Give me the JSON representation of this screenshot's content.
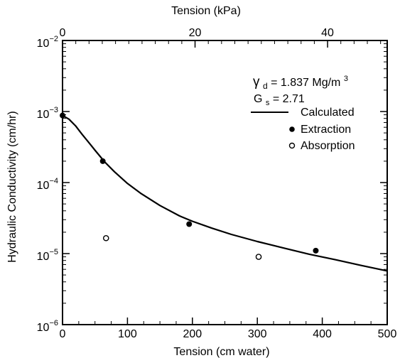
{
  "chart_data": {
    "type": "scatter",
    "xlabel": "Tension (cm water)",
    "x2label": "Tension (kPa)",
    "ylabel": "Hydraulic Conductivity (cm/hr)",
    "xlim": [
      0,
      500
    ],
    "x2lim": [
      0,
      49.0
    ],
    "ylim": [
      1e-06,
      0.01
    ],
    "yscale": "log",
    "x_ticks": [
      0,
      100,
      200,
      300,
      400,
      500
    ],
    "x2_ticks": [
      0,
      20,
      40
    ],
    "y_ticks": [
      {
        "value": 1e-06,
        "base": "10",
        "exp": "−6"
      },
      {
        "value": 1e-05,
        "base": "10",
        "exp": "−5"
      },
      {
        "value": 0.0001,
        "base": "10",
        "exp": "−4"
      },
      {
        "value": 0.001,
        "base": "10",
        "exp": "−3"
      },
      {
        "value": 0.01,
        "base": "10",
        "exp": "−2"
      }
    ],
    "annotations": {
      "gamma": {
        "sym": "γ",
        "sub": "d",
        "text": " = 1.837 Mg/m",
        "sup": "3"
      },
      "gs": {
        "sym": "G",
        "sub": "s",
        "text": " = 2.71"
      }
    },
    "series": [
      {
        "name": "Calculated",
        "style": "line",
        "x": [
          0,
          10,
          20,
          30,
          40,
          50,
          65,
          80,
          100,
          120,
          150,
          180,
          200,
          230,
          260,
          300,
          340,
          380,
          420,
          460,
          500
        ],
        "y": [
          0.00088,
          0.00078,
          0.00063,
          0.00048,
          0.00037,
          0.000285,
          0.000195,
          0.000142,
          9.7e-05,
          7.1e-05,
          4.75e-05,
          3.4e-05,
          2.85e-05,
          2.28e-05,
          1.86e-05,
          1.48e-05,
          1.2e-05,
          9.8e-06,
          8.2e-06,
          6.8e-06,
          5.7e-06
        ]
      },
      {
        "name": "Extraction",
        "style": "filled-circle",
        "x": [
          0,
          62,
          195,
          390
        ],
        "y": [
          0.00088,
          0.0002,
          2.6e-05,
          1.1e-05
        ]
      },
      {
        "name": "Absorption",
        "style": "open-circle",
        "x": [
          67,
          302
        ],
        "y": [
          1.65e-05,
          9e-06
        ]
      }
    ]
  }
}
